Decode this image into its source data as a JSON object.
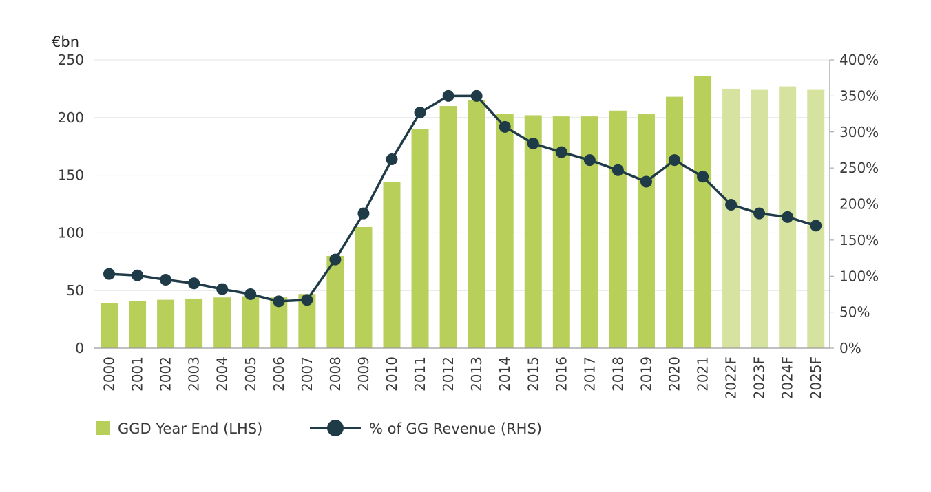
{
  "chart_data": {
    "type": "bar",
    "ylabel": "€bn",
    "ylim": [
      0,
      250
    ],
    "y2lim": [
      0,
      400
    ],
    "grid": true,
    "legend_position": "bottom-left",
    "categories": [
      "2000",
      "2001",
      "2002",
      "2003",
      "2004",
      "2005",
      "2006",
      "2007",
      "2008",
      "2009",
      "2010",
      "2011",
      "2012",
      "2013",
      "2014",
      "2015",
      "2016",
      "2017",
      "2018",
      "2019",
      "2020",
      "2021",
      "2022F",
      "2023F",
      "2024F",
      "2025F"
    ],
    "y_ticks": [
      "0",
      "50",
      "100",
      "150",
      "200",
      "250"
    ],
    "y2_ticks": [
      "0%",
      "50%",
      "100%",
      "150%",
      "200%",
      "250%",
      "300%",
      "350%",
      "400%"
    ],
    "series": [
      {
        "name": "GGD Year End (LHS)",
        "type": "bar",
        "axis": "left",
        "color": "#b8cf5a",
        "forecast_color": "#d6e3a0",
        "values": [
          39,
          41,
          42,
          43,
          44,
          45,
          44,
          47,
          80,
          105,
          144,
          190,
          210,
          215,
          203,
          202,
          201,
          201,
          206,
          203,
          218,
          236,
          225,
          224,
          227,
          224
        ]
      },
      {
        "name": "% of GG Revenue (RHS)",
        "type": "line",
        "axis": "right",
        "color": "#1f3b48",
        "values": [
          103,
          101,
          95,
          90,
          82,
          75,
          65,
          67,
          123,
          187,
          262,
          327,
          350,
          350,
          307,
          284,
          272,
          261,
          247,
          231,
          261,
          238,
          199,
          187,
          182,
          170
        ]
      }
    ],
    "forecast_from_index": 22
  }
}
